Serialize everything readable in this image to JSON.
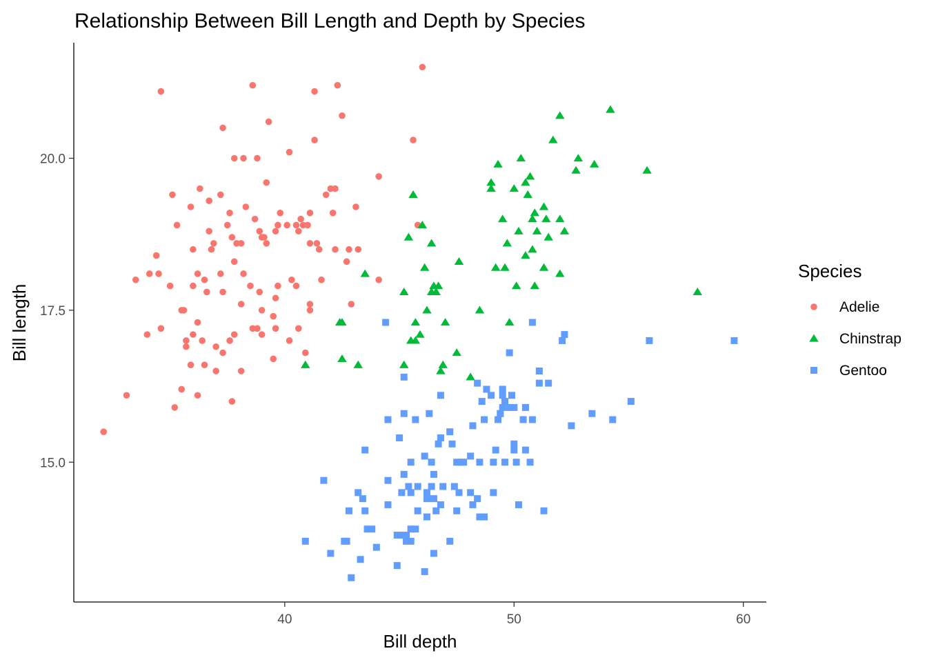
{
  "chart_data": {
    "type": "scatter",
    "title": "Relationship Between Bill Length and Depth by Species",
    "xlabel": "Bill depth",
    "ylabel": "Bill length",
    "xlim": [
      30.8,
      61
    ],
    "ylim": [
      12.7,
      21.9
    ],
    "x_ticks": [
      40,
      50,
      60
    ],
    "x_tick_labels": [
      "40",
      "50",
      "60"
    ],
    "y_ticks": [
      15.0,
      17.5,
      20.0
    ],
    "y_tick_labels": [
      "15.0",
      "17.5",
      "20.0"
    ],
    "grid": false,
    "legend": {
      "title": "Species",
      "position": "right"
    },
    "series": [
      {
        "name": "Adelie",
        "color": "#F8766D",
        "marker": "circle",
        "points": [
          [
            32.1,
            15.5
          ],
          [
            33.1,
            16.1
          ],
          [
            33.5,
            18.0
          ],
          [
            34.0,
            17.1
          ],
          [
            34.1,
            18.1
          ],
          [
            34.4,
            18.4
          ],
          [
            34.5,
            18.1
          ],
          [
            34.6,
            21.1
          ],
          [
            34.6,
            17.2
          ],
          [
            35.0,
            17.9
          ],
          [
            35.1,
            19.4
          ],
          [
            35.2,
            15.9
          ],
          [
            35.3,
            18.9
          ],
          [
            35.5,
            17.5
          ],
          [
            35.5,
            16.2
          ],
          [
            35.6,
            17.5
          ],
          [
            35.7,
            17.0
          ],
          [
            35.7,
            16.9
          ],
          [
            35.9,
            19.2
          ],
          [
            35.9,
            16.6
          ],
          [
            36.0,
            18.5
          ],
          [
            36.0,
            17.9
          ],
          [
            36.0,
            17.1
          ],
          [
            36.2,
            18.1
          ],
          [
            36.2,
            17.3
          ],
          [
            36.2,
            16.1
          ],
          [
            36.3,
            19.5
          ],
          [
            36.4,
            17.0
          ],
          [
            36.5,
            18.0
          ],
          [
            36.5,
            16.6
          ],
          [
            36.6,
            17.8
          ],
          [
            36.7,
            19.3
          ],
          [
            36.7,
            18.8
          ],
          [
            36.8,
            18.5
          ],
          [
            36.9,
            18.6
          ],
          [
            37.0,
            16.9
          ],
          [
            37.0,
            16.5
          ],
          [
            37.2,
            19.4
          ],
          [
            37.2,
            18.1
          ],
          [
            37.3,
            20.5
          ],
          [
            37.3,
            16.8
          ],
          [
            37.3,
            17.8
          ],
          [
            37.5,
            18.9
          ],
          [
            37.6,
            19.1
          ],
          [
            37.6,
            17.0
          ],
          [
            37.7,
            18.7
          ],
          [
            37.7,
            16.0
          ],
          [
            37.8,
            20.0
          ],
          [
            37.8,
            18.3
          ],
          [
            37.8,
            17.1
          ],
          [
            37.9,
            18.6
          ],
          [
            38.1,
            18.6
          ],
          [
            38.1,
            17.6
          ],
          [
            38.1,
            16.5
          ],
          [
            38.2,
            18.1
          ],
          [
            38.2,
            20.0
          ],
          [
            38.3,
            19.2
          ],
          [
            38.5,
            17.9
          ],
          [
            38.6,
            21.2
          ],
          [
            38.6,
            17.2
          ],
          [
            38.7,
            19.0
          ],
          [
            38.8,
            20.0
          ],
          [
            38.8,
            17.2
          ],
          [
            38.9,
            18.8
          ],
          [
            38.9,
            17.8
          ],
          [
            39.0,
            18.7
          ],
          [
            39.0,
            17.5
          ],
          [
            39.0,
            17.1
          ],
          [
            39.1,
            18.7
          ],
          [
            39.2,
            19.6
          ],
          [
            39.2,
            18.6
          ],
          [
            39.3,
            20.6
          ],
          [
            39.5,
            17.4
          ],
          [
            39.5,
            16.7
          ],
          [
            39.6,
            18.8
          ],
          [
            39.6,
            17.7
          ],
          [
            39.6,
            17.2
          ],
          [
            39.7,
            18.9
          ],
          [
            39.7,
            17.9
          ],
          [
            39.8,
            19.1
          ],
          [
            40.1,
            18.9
          ],
          [
            40.2,
            17.0
          ],
          [
            40.2,
            20.1
          ],
          [
            40.3,
            18.0
          ],
          [
            40.5,
            18.9
          ],
          [
            40.5,
            17.9
          ],
          [
            40.6,
            18.8
          ],
          [
            40.6,
            17.2
          ],
          [
            40.7,
            19.0
          ],
          [
            40.8,
            18.9
          ],
          [
            40.9,
            16.8
          ],
          [
            41.0,
            18.9
          ],
          [
            41.1,
            19.1
          ],
          [
            41.1,
            18.6
          ],
          [
            41.1,
            17.6
          ],
          [
            41.1,
            17.5
          ],
          [
            41.3,
            20.3
          ],
          [
            41.3,
            21.1
          ],
          [
            41.4,
            18.6
          ],
          [
            41.5,
            18.5
          ],
          [
            41.6,
            18.0
          ],
          [
            41.8,
            19.4
          ],
          [
            42.0,
            19.5
          ],
          [
            42.1,
            19.1
          ],
          [
            42.2,
            19.5
          ],
          [
            42.2,
            18.5
          ],
          [
            42.3,
            21.2
          ],
          [
            42.5,
            20.7
          ],
          [
            42.7,
            18.3
          ],
          [
            42.8,
            18.5
          ],
          [
            42.9,
            17.6
          ],
          [
            43.1,
            19.2
          ],
          [
            43.2,
            18.5
          ],
          [
            44.1,
            19.7
          ],
          [
            44.1,
            18.0
          ],
          [
            45.6,
            20.3
          ],
          [
            45.8,
            18.9
          ],
          [
            46.0,
            21.5
          ]
        ]
      },
      {
        "name": "Chinstrap",
        "color": "#00BA38",
        "marker": "triangle",
        "points": [
          [
            40.9,
            16.6
          ],
          [
            42.4,
            17.3
          ],
          [
            42.5,
            16.7
          ],
          [
            42.5,
            17.3
          ],
          [
            43.2,
            16.6
          ],
          [
            43.5,
            18.1
          ],
          [
            45.2,
            16.6
          ],
          [
            45.2,
            17.8
          ],
          [
            45.4,
            18.7
          ],
          [
            45.5,
            17.0
          ],
          [
            45.6,
            19.4
          ],
          [
            45.7,
            17.0
          ],
          [
            45.7,
            17.3
          ],
          [
            45.9,
            17.1
          ],
          [
            46.0,
            18.9
          ],
          [
            46.1,
            18.2
          ],
          [
            46.2,
            17.5
          ],
          [
            46.4,
            18.6
          ],
          [
            46.4,
            17.8
          ],
          [
            46.5,
            17.9
          ],
          [
            46.6,
            17.8
          ],
          [
            46.7,
            17.9
          ],
          [
            46.8,
            16.5
          ],
          [
            46.9,
            16.6
          ],
          [
            47.0,
            17.3
          ],
          [
            47.5,
            16.8
          ],
          [
            47.6,
            18.3
          ],
          [
            48.1,
            16.4
          ],
          [
            48.5,
            17.5
          ],
          [
            49.0,
            19.5
          ],
          [
            49.0,
            19.6
          ],
          [
            49.2,
            18.2
          ],
          [
            49.3,
            19.9
          ],
          [
            49.5,
            19.0
          ],
          [
            49.6,
            18.2
          ],
          [
            49.7,
            18.6
          ],
          [
            49.8,
            17.3
          ],
          [
            50.0,
            19.5
          ],
          [
            50.1,
            17.9
          ],
          [
            50.2,
            18.8
          ],
          [
            50.3,
            20.0
          ],
          [
            50.5,
            18.4
          ],
          [
            50.5,
            19.6
          ],
          [
            50.6,
            19.4
          ],
          [
            50.7,
            19.7
          ],
          [
            50.8,
            18.5
          ],
          [
            50.8,
            19.0
          ],
          [
            50.9,
            17.9
          ],
          [
            50.9,
            19.1
          ],
          [
            51.0,
            18.8
          ],
          [
            51.3,
            18.2
          ],
          [
            51.3,
            19.2
          ],
          [
            51.4,
            19.0
          ],
          [
            51.5,
            18.7
          ],
          [
            51.7,
            20.3
          ],
          [
            52.0,
            18.1
          ],
          [
            52.0,
            19.0
          ],
          [
            52.0,
            20.7
          ],
          [
            52.2,
            18.8
          ],
          [
            52.7,
            19.8
          ],
          [
            52.8,
            20.0
          ],
          [
            53.5,
            19.9
          ],
          [
            54.2,
            20.8
          ],
          [
            55.8,
            19.8
          ],
          [
            58.0,
            17.8
          ]
        ]
      },
      {
        "name": "Gentoo",
        "color": "#619CFF",
        "marker": "square",
        "points": [
          [
            40.9,
            13.7
          ],
          [
            41.7,
            14.7
          ],
          [
            42.0,
            13.5
          ],
          [
            42.6,
            13.7
          ],
          [
            42.7,
            13.7
          ],
          [
            42.8,
            14.2
          ],
          [
            42.9,
            13.1
          ],
          [
            43.2,
            14.5
          ],
          [
            43.3,
            13.4
          ],
          [
            43.4,
            14.4
          ],
          [
            43.5,
            14.2
          ],
          [
            43.5,
            15.2
          ],
          [
            43.6,
            13.9
          ],
          [
            43.8,
            13.9
          ],
          [
            44.0,
            13.6
          ],
          [
            44.4,
            17.3
          ],
          [
            44.5,
            14.3
          ],
          [
            44.5,
            14.7
          ],
          [
            44.5,
            15.7
          ],
          [
            44.9,
            13.3
          ],
          [
            44.9,
            13.8
          ],
          [
            45.0,
            15.4
          ],
          [
            45.1,
            14.5
          ],
          [
            45.1,
            13.8
          ],
          [
            45.2,
            13.8
          ],
          [
            45.2,
            14.8
          ],
          [
            45.2,
            16.4
          ],
          [
            45.2,
            15.8
          ],
          [
            45.3,
            13.7
          ],
          [
            45.3,
            13.8
          ],
          [
            45.4,
            14.6
          ],
          [
            45.5,
            14.5
          ],
          [
            45.5,
            15.0
          ],
          [
            45.5,
            13.7
          ],
          [
            45.5,
            13.9
          ],
          [
            45.7,
            13.9
          ],
          [
            45.7,
            15.7
          ],
          [
            45.8,
            14.2
          ],
          [
            45.8,
            14.6
          ],
          [
            46.1,
            13.2
          ],
          [
            46.1,
            15.1
          ],
          [
            46.2,
            14.5
          ],
          [
            46.2,
            14.4
          ],
          [
            46.2,
            14.1
          ],
          [
            46.3,
            15.8
          ],
          [
            46.4,
            14.6
          ],
          [
            46.4,
            15.0
          ],
          [
            46.5,
            13.5
          ],
          [
            46.5,
            14.4
          ],
          [
            46.5,
            14.8
          ],
          [
            46.6,
            14.2
          ],
          [
            46.7,
            15.3
          ],
          [
            46.8,
            15.4
          ],
          [
            46.8,
            14.3
          ],
          [
            46.8,
            16.1
          ],
          [
            46.9,
            14.6
          ],
          [
            47.2,
            13.7
          ],
          [
            47.2,
            15.5
          ],
          [
            47.3,
            15.3
          ],
          [
            47.4,
            14.6
          ],
          [
            47.5,
            14.2
          ],
          [
            47.5,
            15.0
          ],
          [
            47.6,
            14.5
          ],
          [
            47.7,
            15.0
          ],
          [
            47.8,
            15.0
          ],
          [
            48.1,
            15.1
          ],
          [
            48.1,
            14.5
          ],
          [
            48.2,
            14.3
          ],
          [
            48.2,
            15.6
          ],
          [
            48.4,
            14.4
          ],
          [
            48.4,
            16.3
          ],
          [
            48.5,
            14.1
          ],
          [
            48.5,
            15.0
          ],
          [
            48.6,
            16.0
          ],
          [
            48.7,
            14.1
          ],
          [
            48.7,
            15.7
          ],
          [
            48.8,
            16.2
          ],
          [
            49.0,
            16.1
          ],
          [
            49.1,
            14.5
          ],
          [
            49.1,
            15.0
          ],
          [
            49.2,
            15.2
          ],
          [
            49.3,
            15.7
          ],
          [
            49.4,
            15.8
          ],
          [
            49.4,
            15.8
          ],
          [
            49.5,
            15.9
          ],
          [
            49.5,
            16.2
          ],
          [
            49.5,
            16.1
          ],
          [
            49.6,
            15.0
          ],
          [
            49.6,
            16.0
          ],
          [
            49.8,
            15.9
          ],
          [
            49.8,
            16.8
          ],
          [
            49.9,
            16.1
          ],
          [
            50.0,
            15.2
          ],
          [
            50.0,
            15.9
          ],
          [
            50.0,
            15.3
          ],
          [
            50.1,
            15.0
          ],
          [
            50.2,
            14.3
          ],
          [
            50.4,
            15.7
          ],
          [
            50.5,
            15.2
          ],
          [
            50.5,
            15.9
          ],
          [
            50.7,
            15.0
          ],
          [
            50.8,
            15.7
          ],
          [
            50.8,
            17.3
          ],
          [
            51.1,
            16.3
          ],
          [
            51.1,
            16.5
          ],
          [
            51.3,
            14.2
          ],
          [
            51.5,
            16.3
          ],
          [
            52.1,
            17.0
          ],
          [
            52.2,
            17.1
          ],
          [
            52.5,
            15.6
          ],
          [
            53.4,
            15.8
          ],
          [
            54.3,
            15.7
          ],
          [
            55.1,
            16.0
          ],
          [
            55.9,
            17.0
          ],
          [
            59.6,
            17.0
          ]
        ]
      }
    ]
  }
}
